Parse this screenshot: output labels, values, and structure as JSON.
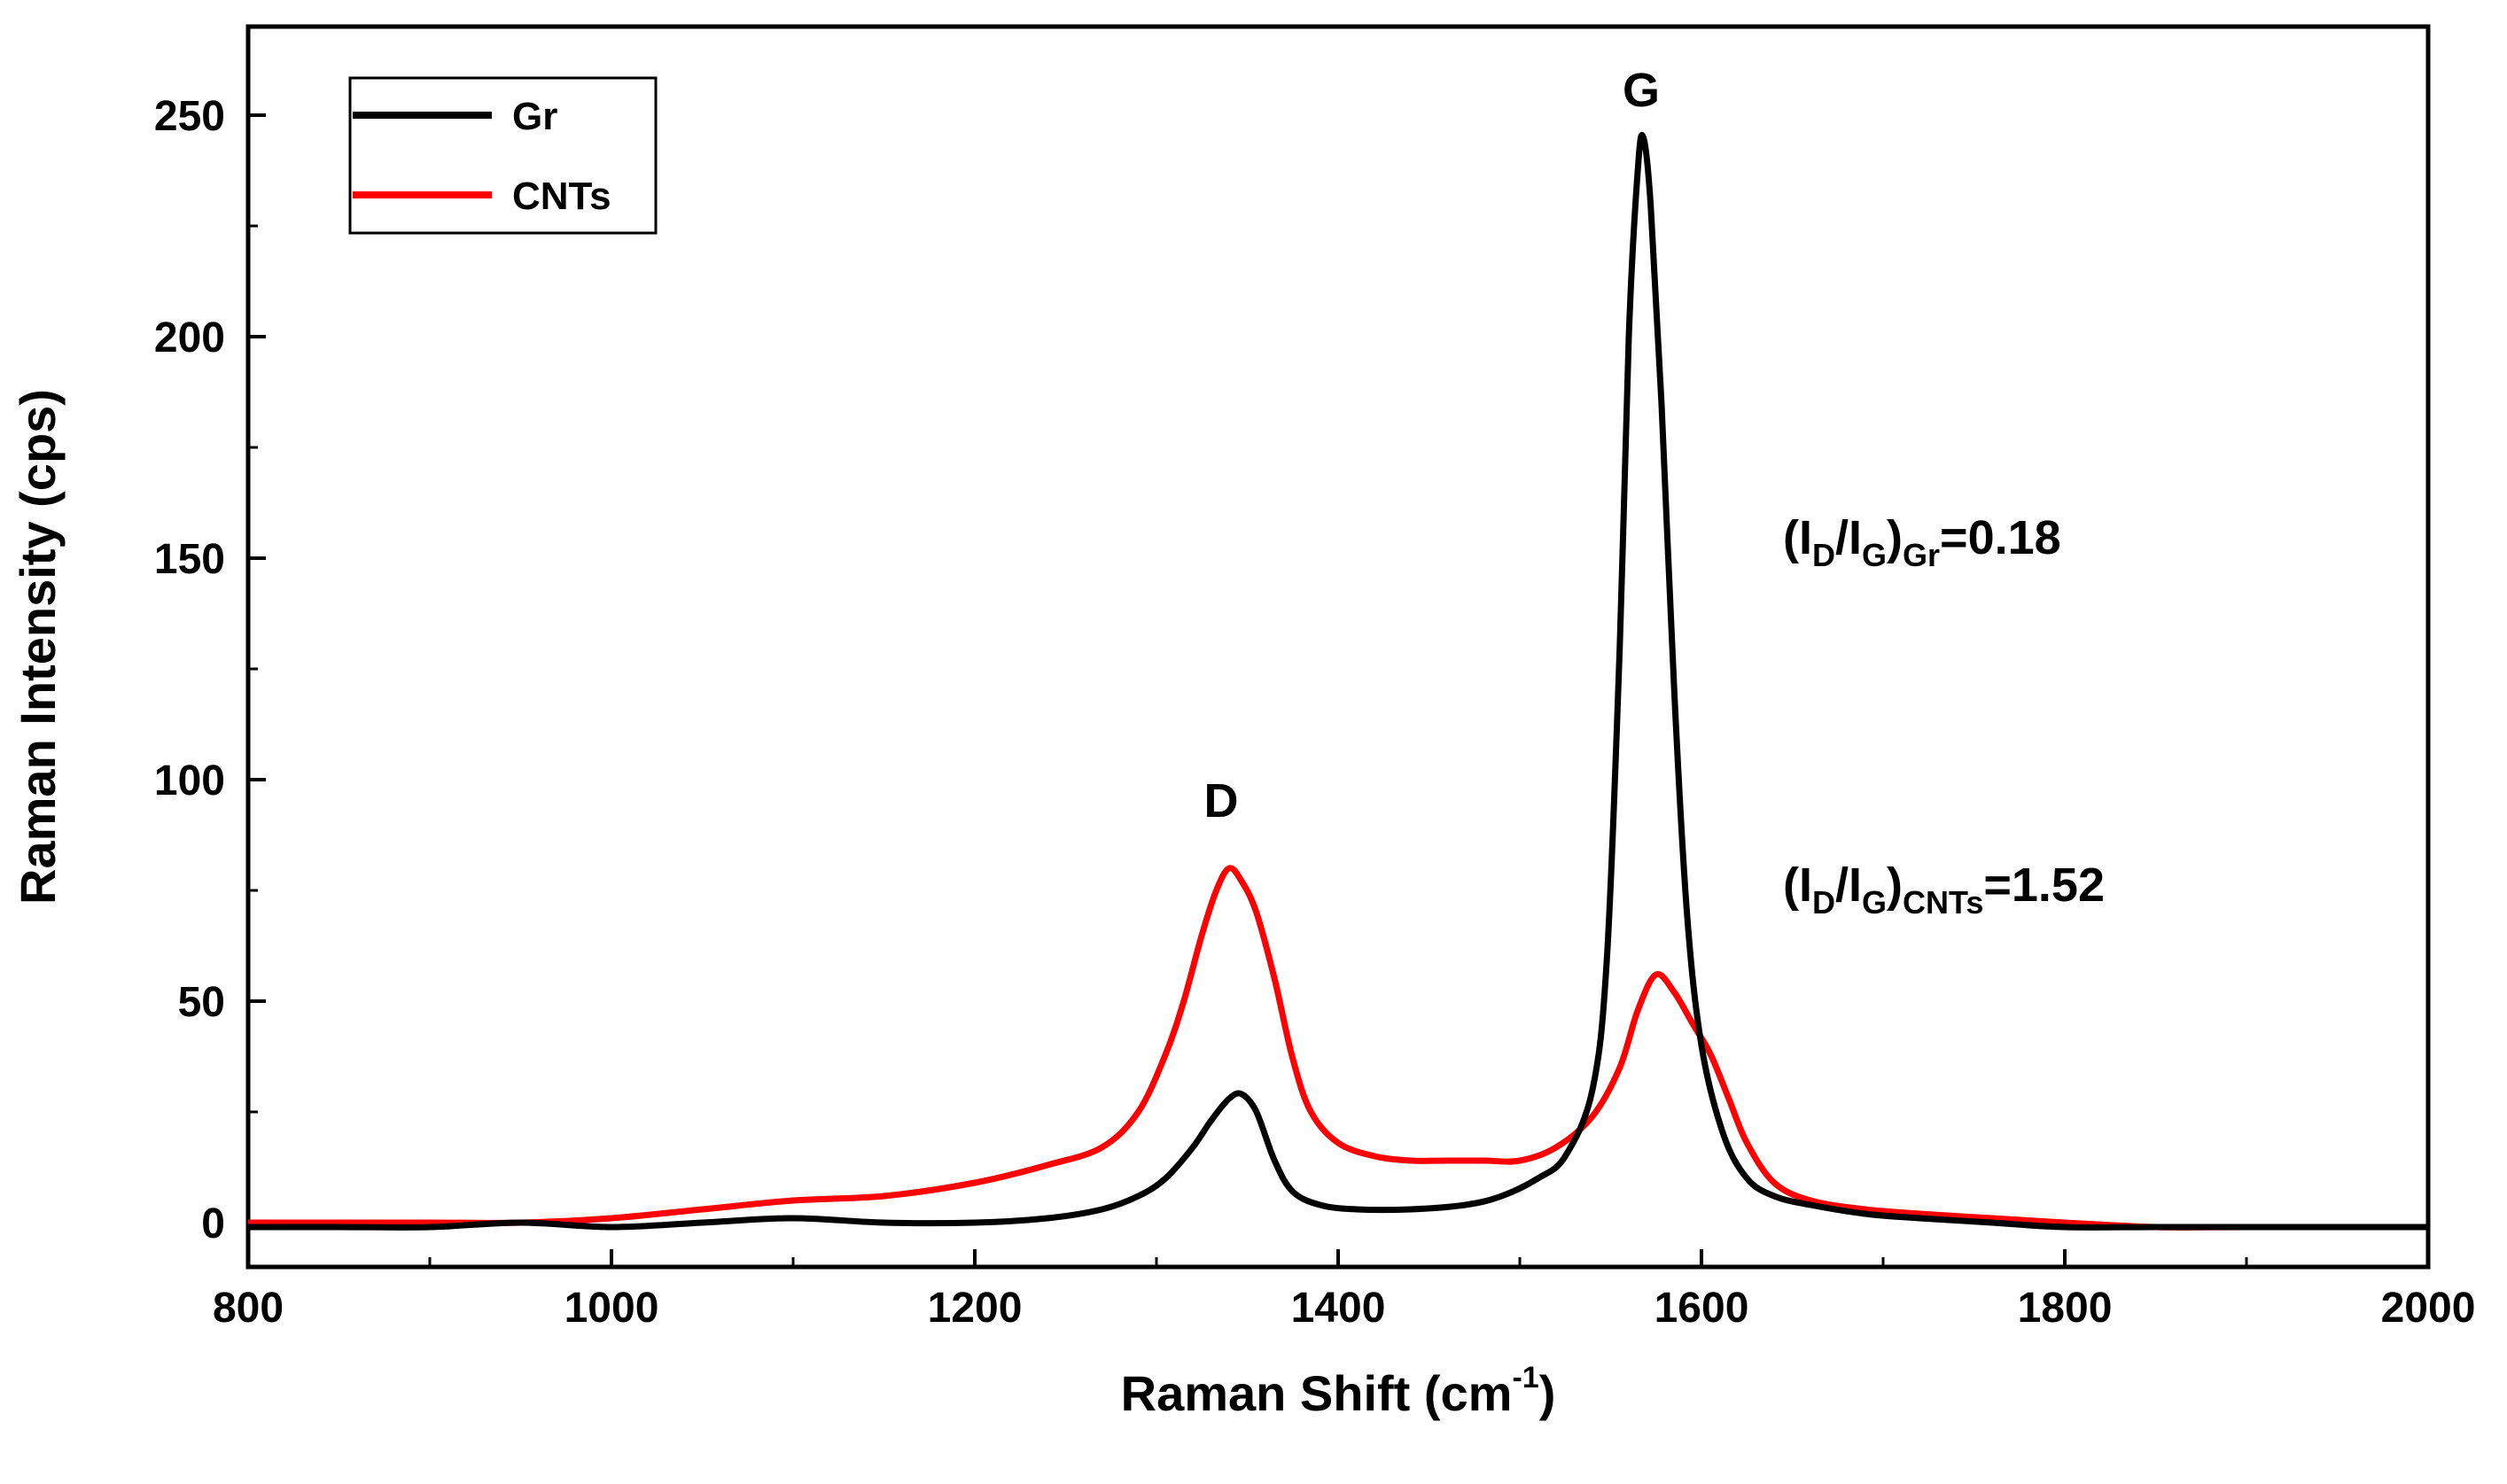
{
  "chart_data": {
    "type": "line",
    "xlabel": "Raman Shift (cm",
    "xlabel_sup": "-1",
    "xlabel_end": ")",
    "ylabel": "Raman Intensity (cps)",
    "xlim": [
      800,
      2000
    ],
    "ylim": [
      -10,
      270
    ],
    "x_ticks": [
      800,
      1000,
      1200,
      1400,
      1600,
      1800,
      2000
    ],
    "y_ticks": [
      0,
      50,
      100,
      150,
      200,
      250
    ],
    "legend_position": "top-left",
    "series": [
      {
        "name": "Gr",
        "color": "#000000",
        "x": [
          800,
          850,
          900,
          950,
          1000,
          1050,
          1100,
          1150,
          1200,
          1240,
          1270,
          1290,
          1305,
          1320,
          1330,
          1340,
          1347,
          1355,
          1365,
          1375,
          1390,
          1410,
          1440,
          1470,
          1490,
          1510,
          1525,
          1540,
          1548,
          1555,
          1560,
          1565,
          1568,
          1572,
          1578,
          1585,
          1592,
          1600,
          1612,
          1625,
          1640,
          1660,
          1690,
          1720,
          1760,
          1800,
          1850,
          1900,
          1950,
          2000
        ],
        "y": [
          -1,
          -1,
          -1,
          0,
          -1,
          0,
          1,
          0,
          0,
          1,
          3,
          6,
          10,
          17,
          23,
          28,
          29,
          25,
          14,
          7,
          4,
          3,
          3,
          4,
          6,
          10,
          15,
          30,
          60,
          130,
          200,
          238,
          245,
          230,
          185,
          120,
          70,
          40,
          20,
          10,
          6,
          4,
          2,
          1,
          0,
          -1,
          -1,
          -1,
          -1,
          -1
        ]
      },
      {
        "name": "CNTs",
        "color": "#ff0000",
        "x": [
          800,
          850,
          900,
          950,
          1000,
          1050,
          1100,
          1150,
          1200,
          1240,
          1270,
          1290,
          1305,
          1315,
          1325,
          1333,
          1340,
          1347,
          1355,
          1365,
          1375,
          1385,
          1400,
          1420,
          1440,
          1460,
          1480,
          1500,
          1520,
          1540,
          1555,
          1565,
          1575,
          1585,
          1595,
          1605,
          1615,
          1625,
          1640,
          1660,
          1690,
          1720,
          1760,
          1800,
          1850,
          1900,
          1950,
          2000
        ],
        "y": [
          0,
          0,
          0,
          0,
          1,
          3,
          5,
          6,
          9,
          13,
          17,
          25,
          38,
          50,
          65,
          75,
          80,
          77,
          70,
          55,
          37,
          25,
          18,
          15,
          14,
          14,
          14,
          14,
          17,
          24,
          35,
          48,
          56,
          52,
          45,
          38,
          28,
          18,
          9,
          5,
          3,
          2,
          1,
          0,
          -1,
          -1,
          -1,
          -1
        ]
      }
    ],
    "annotations": {
      "d_peak": "D",
      "g_peak": "G",
      "ratio_gr": {
        "prefix": "(I",
        "sub1": "D",
        "mid": "/I",
        "sub2": "G",
        "close": ")",
        "sub3": "Gr",
        "value": "=0.18"
      },
      "ratio_cnts": {
        "prefix": "(I",
        "sub1": "D",
        "mid": "/I",
        "sub2": "G",
        "close": ")",
        "sub3": "CNTs",
        "value": "=1.52"
      }
    }
  }
}
